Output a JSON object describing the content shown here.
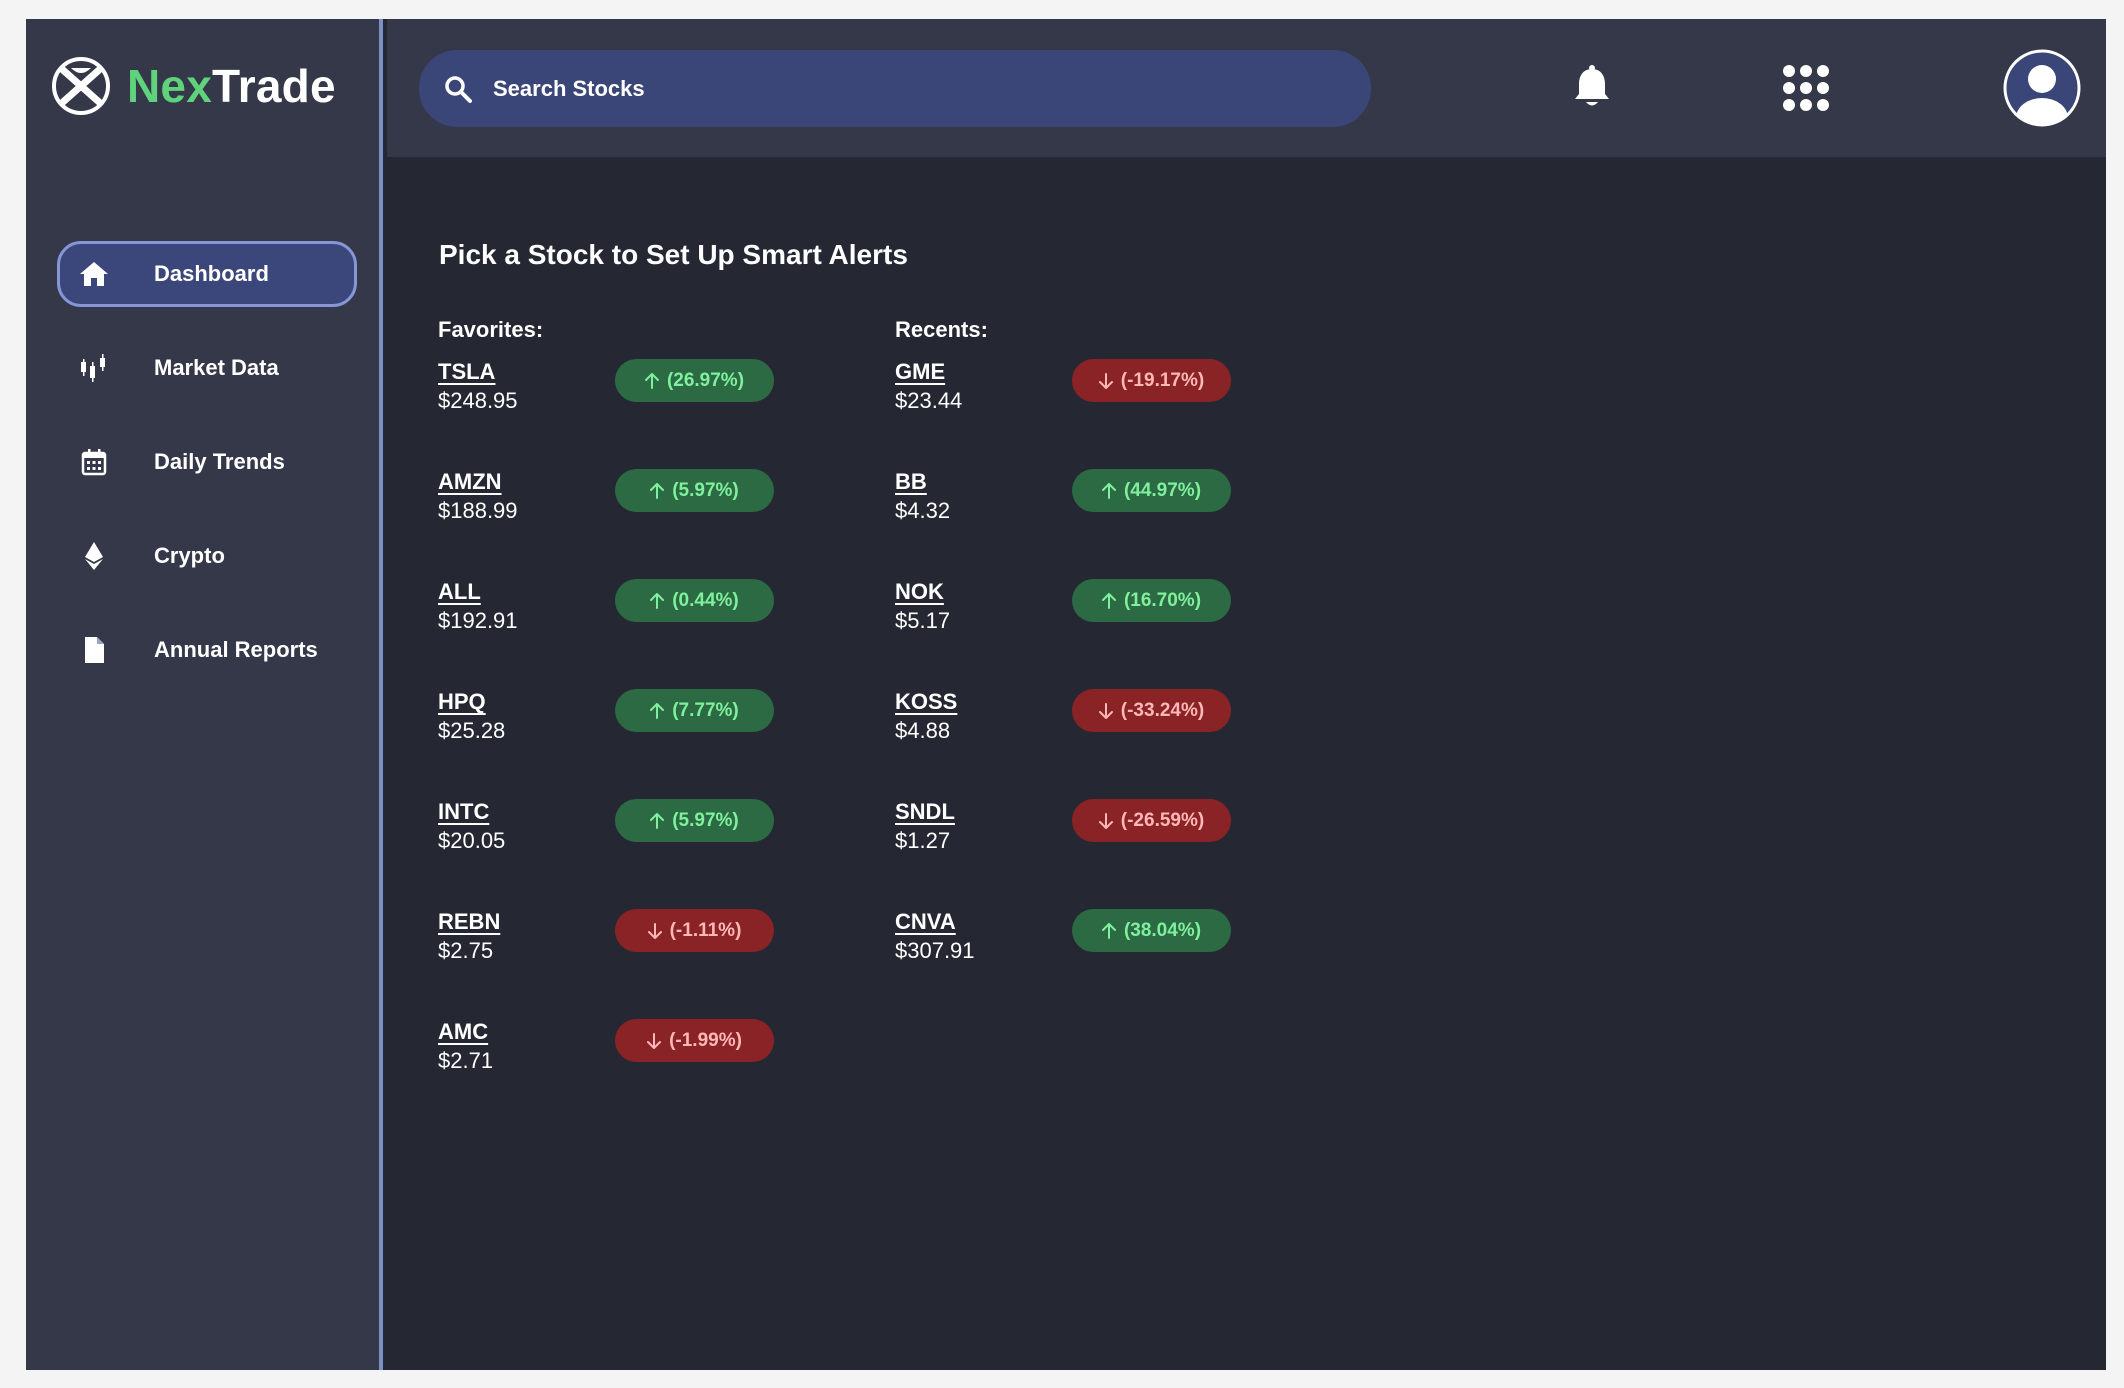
{
  "brand": {
    "name_part1": "Nex",
    "name_part2": "Trade"
  },
  "sidebar": {
    "items": [
      {
        "label": "Dashboard",
        "icon": "home-icon",
        "active": true
      },
      {
        "label": "Market Data",
        "icon": "candlestick-icon",
        "active": false
      },
      {
        "label": "Daily Trends",
        "icon": "calendar-icon",
        "active": false
      },
      {
        "label": "Crypto",
        "icon": "ethereum-icon",
        "active": false
      },
      {
        "label": "Annual Reports",
        "icon": "document-icon",
        "active": false
      }
    ]
  },
  "header": {
    "search_placeholder": "Search Stocks",
    "icons": [
      "bell-icon",
      "apps-grid-icon",
      "user-avatar-icon"
    ]
  },
  "main": {
    "title": "Pick a Stock to Set Up Smart Alerts",
    "favorites": {
      "label": "Favorites:",
      "stocks": [
        {
          "ticker": "TSLA",
          "price": "$248.95",
          "change": "(26.97%)",
          "direction": "up"
        },
        {
          "ticker": "AMZN",
          "price": "$188.99",
          "change": "(5.97%)",
          "direction": "up"
        },
        {
          "ticker": "ALL",
          "price": "$192.91",
          "change": "(0.44%)",
          "direction": "up"
        },
        {
          "ticker": "HPQ",
          "price": "$25.28",
          "change": "(7.77%)",
          "direction": "up"
        },
        {
          "ticker": "INTC",
          "price": "$20.05",
          "change": "(5.97%)",
          "direction": "up"
        },
        {
          "ticker": "REBN",
          "price": "$2.75",
          "change": "(-1.11%)",
          "direction": "down"
        },
        {
          "ticker": "AMC",
          "price": "$2.71",
          "change": "(-1.99%)",
          "direction": "down"
        }
      ]
    },
    "recents": {
      "label": "Recents:",
      "stocks": [
        {
          "ticker": "GME",
          "price": "$23.44",
          "change": "(-19.17%)",
          "direction": "down"
        },
        {
          "ticker": "BB",
          "price": "$4.32",
          "change": "(44.97%)",
          "direction": "up"
        },
        {
          "ticker": "NOK",
          "price": "$5.17",
          "change": "(16.70%)",
          "direction": "up"
        },
        {
          "ticker": "KOSS",
          "price": "$4.88",
          "change": "(-33.24%)",
          "direction": "down"
        },
        {
          "ticker": "SNDL",
          "price": "$1.27",
          "change": "(-26.59%)",
          "direction": "down"
        },
        {
          "ticker": "CNVA",
          "price": "$307.91",
          "change": "(38.04%)",
          "direction": "up"
        }
      ]
    }
  },
  "colors": {
    "up_bg": "#2c6a44",
    "up_text": "#7ff09d",
    "down_bg": "#8a2326",
    "down_text": "#ffb7b7",
    "accent": "#5fd37c"
  }
}
